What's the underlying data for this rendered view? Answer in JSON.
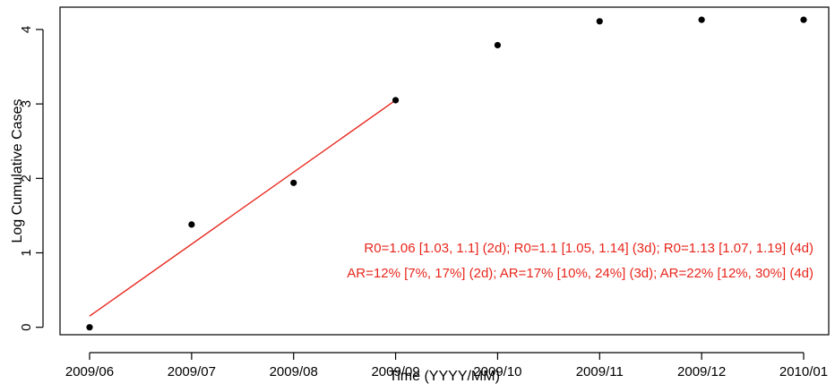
{
  "chart_data": {
    "type": "scatter",
    "xlabel": "Time (YYYY/MM)",
    "ylabel": "Log Cumulative Cases",
    "x_ticks": [
      "2009/06",
      "2009/07",
      "2009/08",
      "2009/09",
      "2009/10",
      "2009/11",
      "2009/12",
      "2010/01"
    ],
    "y_ticks": [
      "0",
      "1",
      "2",
      "3",
      "4"
    ],
    "ylim": [
      -0.1,
      4.3
    ],
    "series": [
      {
        "x": [
          "2009/06",
          "2009/07",
          "2009/08",
          "2009/09",
          "2009/10",
          "2009/11",
          "2009/12",
          "2010/01"
        ],
        "y": [
          0.0,
          1.38,
          1.94,
          3.05,
          3.79,
          4.11,
          4.13,
          4.13
        ]
      }
    ],
    "fit_line": {
      "color": "#e8261c",
      "from": {
        "x": "2009/06",
        "y": 0.15
      },
      "to": {
        "x": "2009/09",
        "y": 3.05
      }
    },
    "annotations": [
      "R0=1.06 [1.03, 1.1] (2d); R0=1.1 [1.05, 1.14] (3d); R0=1.13 [1.07, 1.19] (4d)",
      "AR=12% [7%, 17%] (2d); AR=17% [10%, 24%] (3d); AR=22% [12%, 30%] (4d)"
    ],
    "annotation_color": "#e8261c",
    "point_color": "#000000"
  }
}
